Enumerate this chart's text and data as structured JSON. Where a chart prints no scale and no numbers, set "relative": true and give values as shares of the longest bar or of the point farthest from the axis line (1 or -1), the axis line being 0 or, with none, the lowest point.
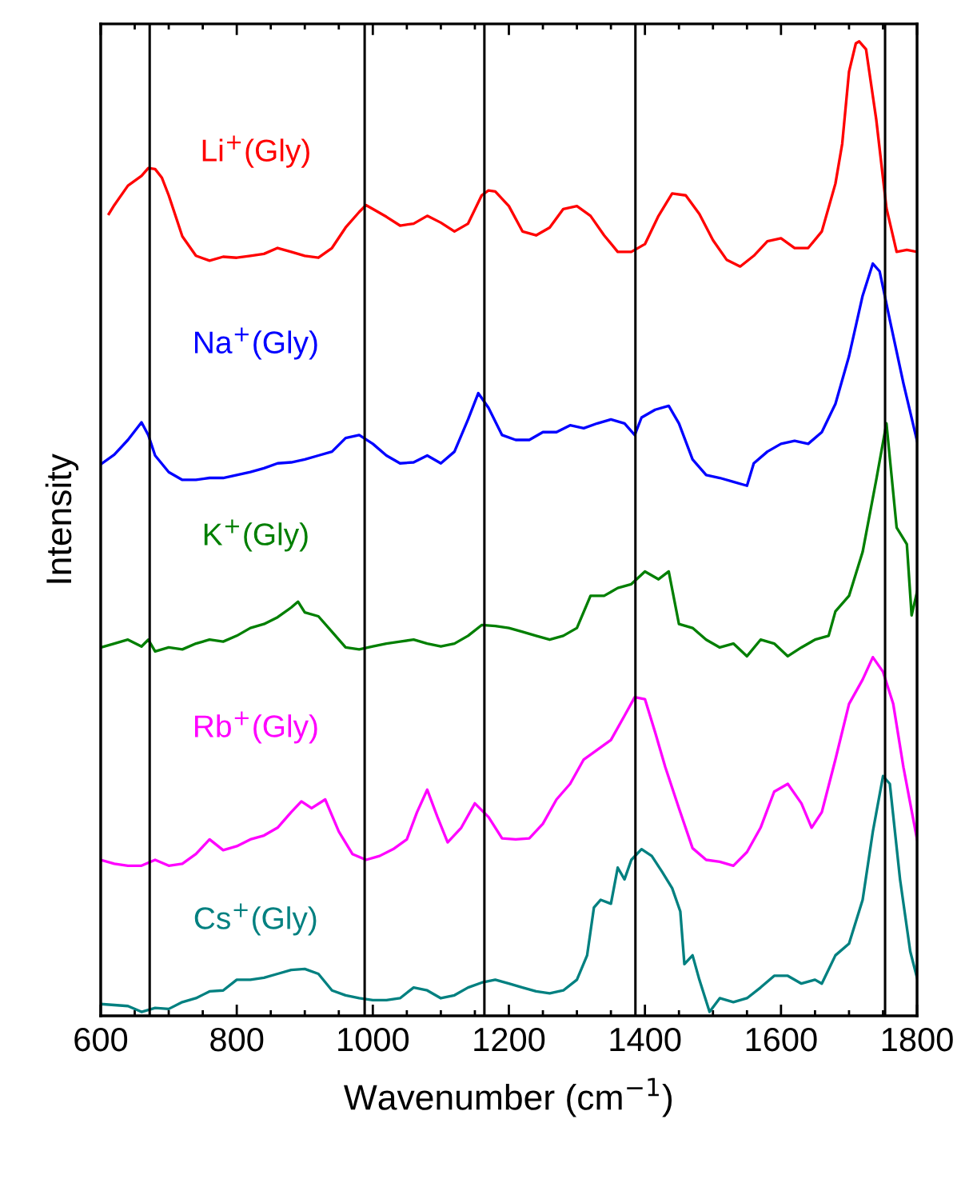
{
  "chart_data": {
    "type": "line",
    "relative": true,
    "xlabel": "Wavenumber (cm$^{−1}$)",
    "ylabel": "Intensity",
    "xlim": [
      600,
      1800
    ],
    "xticks": [
      600,
      800,
      1000,
      1200,
      1400,
      1600,
      1800
    ],
    "legend": false,
    "grid": false,
    "series": [
      {
        "name": "Li$^{+}$(Gly)",
        "color": "#ff0000",
        "x": [
          612,
          620,
          640,
          660,
          670,
          680,
          690,
          700,
          720,
          740,
          760,
          780,
          800,
          820,
          840,
          860,
          880,
          900,
          920,
          940,
          960,
          980,
          990,
          1000,
          1020,
          1040,
          1060,
          1080,
          1100,
          1120,
          1140,
          1160,
          1170,
          1180,
          1200,
          1220,
          1240,
          1260,
          1280,
          1300,
          1320,
          1340,
          1360,
          1380,
          1400,
          1420,
          1440,
          1460,
          1480,
          1500,
          1520,
          1540,
          1560,
          1580,
          1600,
          1620,
          1640,
          1660,
          1680,
          1690,
          1700,
          1710,
          1715,
          1725,
          1740,
          1755,
          1770,
          1785,
          1800
        ],
        "values": [
          0.823,
          0.832,
          0.852,
          0.862,
          0.87,
          0.869,
          0.86,
          0.842,
          0.8,
          0.78,
          0.775,
          0.779,
          0.778,
          0.78,
          0.782,
          0.788,
          0.784,
          0.78,
          0.778,
          0.788,
          0.809,
          0.825,
          0.832,
          0.828,
          0.82,
          0.811,
          0.813,
          0.821,
          0.814,
          0.805,
          0.813,
          0.842,
          0.847,
          0.846,
          0.831,
          0.805,
          0.801,
          0.809,
          0.828,
          0.831,
          0.821,
          0.801,
          0.784,
          0.784,
          0.792,
          0.821,
          0.844,
          0.842,
          0.823,
          0.796,
          0.776,
          0.769,
          0.78,
          0.795,
          0.798,
          0.788,
          0.788,
          0.805,
          0.854,
          0.895,
          0.969,
          0.998,
          1.0,
          0.992,
          0.92,
          0.829,
          0.784,
          0.786,
          0.784
        ]
      },
      {
        "name": "Na$^{+}$(Gly)",
        "color": "#0000ff",
        "x": [
          600,
          620,
          640,
          660,
          670,
          680,
          700,
          720,
          740,
          760,
          780,
          800,
          820,
          840,
          860,
          880,
          900,
          920,
          940,
          960,
          980,
          1000,
          1020,
          1040,
          1060,
          1080,
          1100,
          1120,
          1140,
          1155,
          1170,
          1190,
          1210,
          1230,
          1250,
          1270,
          1290,
          1310,
          1330,
          1350,
          1370,
          1385,
          1395,
          1415,
          1435,
          1450,
          1470,
          1490,
          1510,
          1530,
          1550,
          1560,
          1580,
          1600,
          1620,
          1640,
          1660,
          1680,
          1700,
          1720,
          1735,
          1745,
          1760,
          1780,
          1800
        ],
        "values": [
          0.566,
          0.576,
          0.591,
          0.609,
          0.596,
          0.575,
          0.558,
          0.55,
          0.55,
          0.552,
          0.552,
          0.555,
          0.558,
          0.562,
          0.567,
          0.568,
          0.571,
          0.575,
          0.579,
          0.593,
          0.596,
          0.587,
          0.575,
          0.567,
          0.568,
          0.575,
          0.567,
          0.579,
          0.612,
          0.639,
          0.624,
          0.596,
          0.591,
          0.591,
          0.599,
          0.599,
          0.606,
          0.603,
          0.608,
          0.612,
          0.608,
          0.596,
          0.614,
          0.622,
          0.626,
          0.608,
          0.571,
          0.555,
          0.552,
          0.548,
          0.544,
          0.567,
          0.579,
          0.587,
          0.59,
          0.587,
          0.599,
          0.628,
          0.677,
          0.739,
          0.772,
          0.764,
          0.714,
          0.649,
          0.59
        ]
      },
      {
        "name": "K$^{+}$(Gly)",
        "color": "#007f00",
        "x": [
          600,
          620,
          640,
          660,
          670,
          680,
          700,
          720,
          740,
          760,
          780,
          800,
          820,
          840,
          860,
          880,
          890,
          900,
          920,
          940,
          960,
          980,
          1000,
          1020,
          1040,
          1060,
          1080,
          1100,
          1120,
          1140,
          1160,
          1180,
          1200,
          1220,
          1240,
          1260,
          1280,
          1300,
          1320,
          1340,
          1360,
          1380,
          1400,
          1420,
          1435,
          1450,
          1470,
          1490,
          1510,
          1530,
          1550,
          1570,
          1590,
          1610,
          1630,
          1650,
          1670,
          1680,
          1700,
          1720,
          1740,
          1755,
          1770,
          1785,
          1792,
          1800
        ],
        "values": [
          0.378,
          0.382,
          0.386,
          0.379,
          0.386,
          0.374,
          0.378,
          0.376,
          0.382,
          0.386,
          0.384,
          0.39,
          0.398,
          0.402,
          0.409,
          0.419,
          0.425,
          0.414,
          0.41,
          0.394,
          0.378,
          0.376,
          0.379,
          0.382,
          0.384,
          0.386,
          0.382,
          0.379,
          0.382,
          0.39,
          0.401,
          0.4,
          0.398,
          0.394,
          0.39,
          0.386,
          0.39,
          0.398,
          0.431,
          0.431,
          0.439,
          0.443,
          0.456,
          0.448,
          0.456,
          0.402,
          0.398,
          0.386,
          0.378,
          0.382,
          0.369,
          0.386,
          0.382,
          0.369,
          0.378,
          0.386,
          0.39,
          0.415,
          0.431,
          0.476,
          0.55,
          0.608,
          0.501,
          0.484,
          0.411,
          0.435
        ]
      },
      {
        "name": "Rb$^{+}$(Gly)",
        "color": "#ff00ff",
        "x": [
          600,
          620,
          640,
          660,
          680,
          700,
          720,
          740,
          760,
          780,
          800,
          820,
          840,
          860,
          880,
          895,
          910,
          930,
          950,
          970,
          990,
          1010,
          1030,
          1050,
          1065,
          1080,
          1095,
          1110,
          1130,
          1150,
          1170,
          1190,
          1210,
          1230,
          1250,
          1270,
          1290,
          1310,
          1330,
          1350,
          1370,
          1385,
          1400,
          1415,
          1430,
          1450,
          1470,
          1490,
          1510,
          1530,
          1550,
          1570,
          1590,
          1610,
          1630,
          1645,
          1660,
          1680,
          1700,
          1720,
          1735,
          1750,
          1765,
          1780,
          1800
        ],
        "values": [
          0.16,
          0.156,
          0.154,
          0.154,
          0.16,
          0.154,
          0.156,
          0.166,
          0.181,
          0.17,
          0.174,
          0.181,
          0.185,
          0.193,
          0.209,
          0.22,
          0.213,
          0.222,
          0.189,
          0.166,
          0.16,
          0.164,
          0.171,
          0.181,
          0.209,
          0.232,
          0.204,
          0.178,
          0.193,
          0.218,
          0.204,
          0.182,
          0.181,
          0.182,
          0.197,
          0.222,
          0.238,
          0.263,
          0.273,
          0.283,
          0.308,
          0.327,
          0.325,
          0.291,
          0.255,
          0.213,
          0.172,
          0.16,
          0.158,
          0.154,
          0.168,
          0.193,
          0.23,
          0.238,
          0.218,
          0.193,
          0.209,
          0.263,
          0.32,
          0.345,
          0.368,
          0.353,
          0.32,
          0.255,
          0.181
        ]
      },
      {
        "name": "Cs$^{+}$(Gly)",
        "color": "#008080",
        "x": [
          600,
          620,
          640,
          660,
          680,
          700,
          720,
          740,
          760,
          780,
          800,
          820,
          840,
          860,
          880,
          900,
          920,
          940,
          960,
          980,
          1000,
          1020,
          1040,
          1060,
          1080,
          1100,
          1120,
          1140,
          1160,
          1180,
          1200,
          1220,
          1240,
          1260,
          1280,
          1300,
          1315,
          1325,
          1335,
          1350,
          1360,
          1370,
          1380,
          1395,
          1410,
          1425,
          1440,
          1452,
          1458,
          1470,
          1480,
          1495,
          1510,
          1530,
          1550,
          1570,
          1590,
          1610,
          1630,
          1650,
          1660,
          1680,
          1700,
          1720,
          1735,
          1750,
          1760,
          1775,
          1790,
          1800
        ],
        "values": [
          0.012,
          0.011,
          0.01,
          0.004,
          0.008,
          0.007,
          0.014,
          0.018,
          0.025,
          0.026,
          0.037,
          0.037,
          0.039,
          0.043,
          0.047,
          0.048,
          0.043,
          0.026,
          0.021,
          0.018,
          0.016,
          0.016,
          0.018,
          0.029,
          0.026,
          0.018,
          0.021,
          0.029,
          0.034,
          0.037,
          0.033,
          0.029,
          0.025,
          0.023,
          0.026,
          0.037,
          0.062,
          0.111,
          0.119,
          0.115,
          0.152,
          0.14,
          0.16,
          0.171,
          0.164,
          0.148,
          0.131,
          0.107,
          0.053,
          0.062,
          0.037,
          0.004,
          0.018,
          0.014,
          0.018,
          0.029,
          0.041,
          0.041,
          0.033,
          0.037,
          0.033,
          0.062,
          0.074,
          0.119,
          0.189,
          0.246,
          0.238,
          0.14,
          0.066,
          0.039
        ]
      }
    ],
    "ref_lines": [
      {
        "axis": "x",
        "value": 672,
        "color": "#000000"
      },
      {
        "axis": "x",
        "value": 988,
        "color": "#000000"
      },
      {
        "axis": "x",
        "value": 1164,
        "color": "#000000"
      },
      {
        "axis": "x",
        "value": 1386,
        "color": "#000000"
      },
      {
        "axis": "x",
        "value": 1753,
        "color": "#000000"
      }
    ]
  }
}
